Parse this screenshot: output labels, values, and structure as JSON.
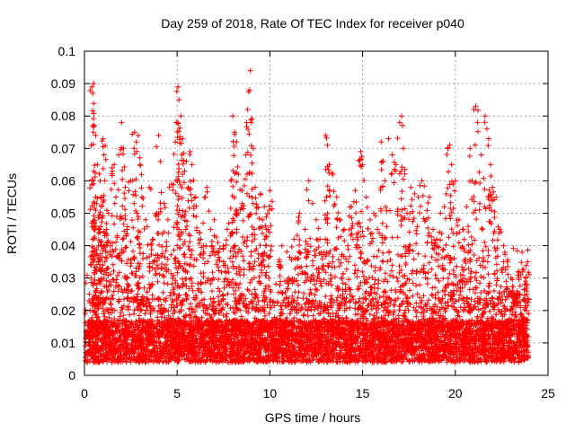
{
  "chart_data": {
    "type": "scatter",
    "title": "Day 259 of 2018, Rate Of TEC Index for receiver p040",
    "xlabel": "GPS time / hours",
    "ylabel": "ROTI / TECUs",
    "xlim": [
      0,
      25
    ],
    "ylim": [
      0,
      0.1
    ],
    "x_ticks": [
      0,
      5,
      10,
      15,
      20,
      25
    ],
    "x_tick_labels": [
      "0",
      "5",
      "10",
      "15",
      "20",
      "25"
    ],
    "y_ticks": [
      0,
      0.01,
      0.02,
      0.03,
      0.04,
      0.05,
      0.06,
      0.07,
      0.08,
      0.09,
      0.1
    ],
    "y_tick_labels": [
      "0",
      "0.01",
      "0.02",
      "0.03",
      "0.04",
      "0.05",
      "0.06",
      "0.07",
      "0.08",
      "0.09",
      "0.1"
    ],
    "grid": true,
    "marker": "+",
    "series": [
      {
        "name": "ROTI",
        "color": "#ff0000",
        "x": [
          0.4,
          0.45,
          0.5,
          0.45,
          0.5,
          0.55,
          0.6,
          0.7,
          0.75,
          0.8,
          0.85,
          0.9,
          1.0,
          1.05,
          1.1,
          1.2,
          1.3,
          1.5,
          1.6,
          1.7,
          1.85,
          2.0,
          2.1,
          2.2,
          2.3,
          2.5,
          2.7,
          2.8,
          2.9,
          3.0,
          3.1,
          3.3,
          3.5,
          3.7,
          3.9,
          4.0,
          4.1,
          4.3,
          4.5,
          4.7,
          4.9,
          5.0,
          5.05,
          5.1,
          5.2,
          5.3,
          5.4,
          5.5,
          5.6,
          5.7,
          5.8,
          6.0,
          6.2,
          6.4,
          6.6,
          6.8,
          7.0,
          7.2,
          7.5,
          7.7,
          7.9,
          8.0,
          8.1,
          8.2,
          8.3,
          8.5,
          8.7,
          8.8,
          8.9,
          8.95,
          9.0,
          9.1,
          9.2,
          9.3,
          9.5,
          9.6,
          9.7,
          9.9,
          10.0,
          10.5,
          11.0,
          11.3,
          11.6,
          11.9,
          12.1,
          12.3,
          12.5,
          12.7,
          12.9,
          13.0,
          13.1,
          13.2,
          13.4,
          13.6,
          13.8,
          14.0,
          14.2,
          14.4,
          14.6,
          14.8,
          14.9,
          15.0,
          15.2,
          15.4,
          15.6,
          15.8,
          16.0,
          16.1,
          16.2,
          16.4,
          16.6,
          16.8,
          17.0,
          17.1,
          17.2,
          17.4,
          17.6,
          17.8,
          18.0,
          18.2,
          18.4,
          18.6,
          18.8,
          19.0,
          19.2,
          19.4,
          19.6,
          19.7,
          19.8,
          20.0,
          20.2,
          20.4,
          20.6,
          20.8,
          20.9,
          21.0,
          21.1,
          21.2,
          21.4,
          21.6,
          21.7,
          21.8,
          21.9,
          22.0,
          22.2,
          22.4,
          22.6,
          22.8,
          23.0,
          23.2,
          23.4,
          23.6,
          23.8,
          23.9
        ],
        "y": [
          0.089,
          0.087,
          0.09,
          0.077,
          0.063,
          0.053,
          0.055,
          0.065,
          0.04,
          0.045,
          0.06,
          0.055,
          0.073,
          0.068,
          0.06,
          0.045,
          0.05,
          0.063,
          0.065,
          0.055,
          0.068,
          0.078,
          0.07,
          0.058,
          0.045,
          0.06,
          0.075,
          0.072,
          0.074,
          0.065,
          0.055,
          0.048,
          0.058,
          0.042,
          0.05,
          0.074,
          0.066,
          0.053,
          0.048,
          0.059,
          0.072,
          0.078,
          0.089,
          0.085,
          0.08,
          0.073,
          0.063,
          0.066,
          0.058,
          0.069,
          0.065,
          0.055,
          0.044,
          0.047,
          0.058,
          0.045,
          0.048,
          0.041,
          0.035,
          0.045,
          0.06,
          0.08,
          0.075,
          0.072,
          0.062,
          0.057,
          0.068,
          0.082,
          0.088,
          0.094,
          0.078,
          0.07,
          0.058,
          0.052,
          0.056,
          0.048,
          0.052,
          0.045,
          0.057,
          0.035,
          0.03,
          0.042,
          0.05,
          0.045,
          0.06,
          0.053,
          0.048,
          0.042,
          0.038,
          0.074,
          0.071,
          0.065,
          0.062,
          0.055,
          0.048,
          0.045,
          0.04,
          0.052,
          0.057,
          0.047,
          0.069,
          0.065,
          0.055,
          0.048,
          0.05,
          0.045,
          0.072,
          0.066,
          0.06,
          0.073,
          0.068,
          0.065,
          0.078,
          0.08,
          0.07,
          0.05,
          0.058,
          0.056,
          0.055,
          0.06,
          0.048,
          0.055,
          0.045,
          0.042,
          0.05,
          0.052,
          0.07,
          0.071,
          0.065,
          0.06,
          0.048,
          0.045,
          0.052,
          0.07,
          0.06,
          0.082,
          0.083,
          0.078,
          0.068,
          0.08,
          0.076,
          0.073,
          0.065,
          0.058,
          0.055,
          0.045,
          0.04,
          0.035,
          0.03,
          0.025,
          0.032,
          0.038,
          0.03,
          0.035
        ]
      }
    ]
  }
}
